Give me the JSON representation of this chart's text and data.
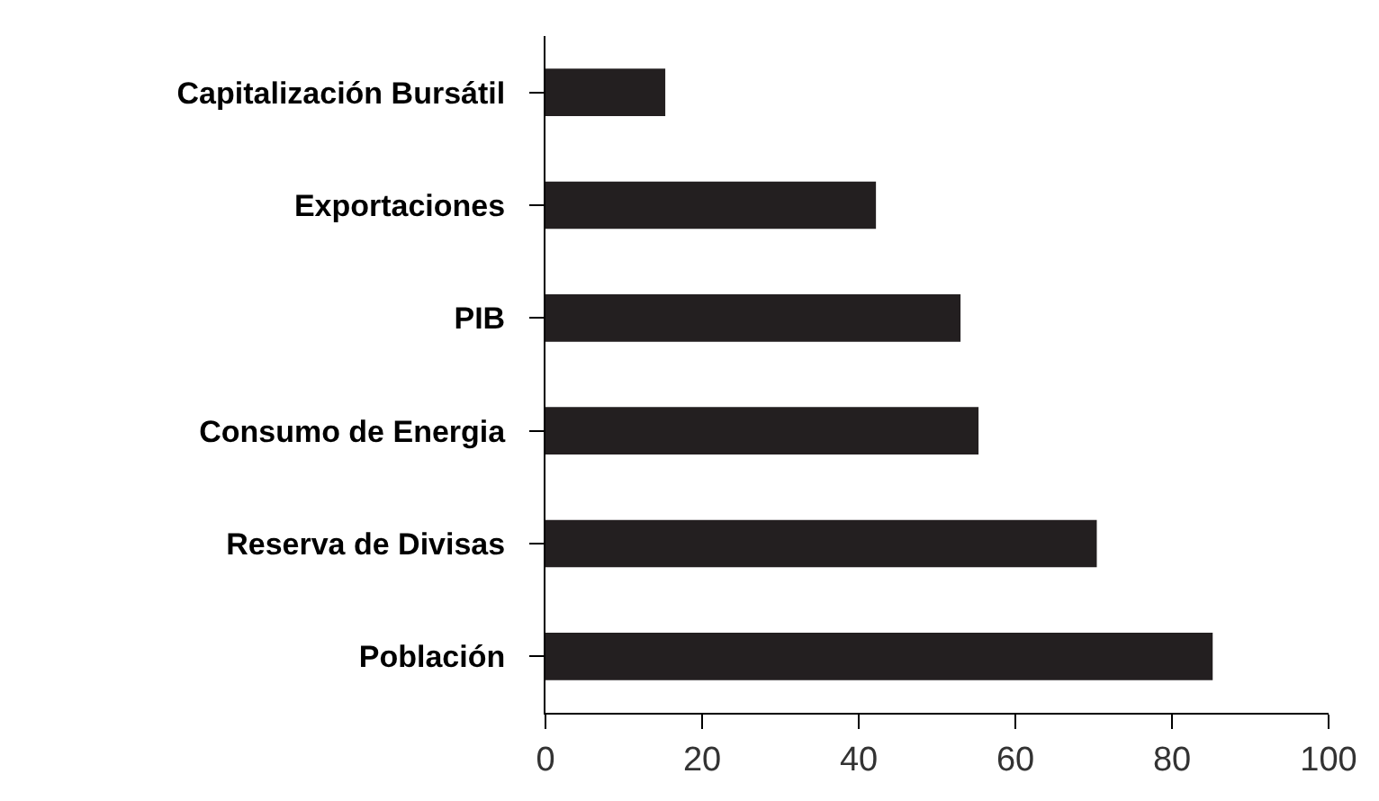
{
  "chart_data": {
    "type": "bar",
    "orientation": "horizontal",
    "categories": [
      "Capitalización Bursátil",
      "Exportaciones",
      "PIB",
      "Consumo de Energia",
      "Reserva de Divisas",
      "Población"
    ],
    "values": [
      15.3,
      42.2,
      53,
      55.3,
      70.4,
      85.2
    ],
    "color": "#231f20",
    "xlim": [
      0,
      100
    ],
    "xticks": [
      0,
      20,
      40,
      60,
      80,
      100
    ]
  }
}
